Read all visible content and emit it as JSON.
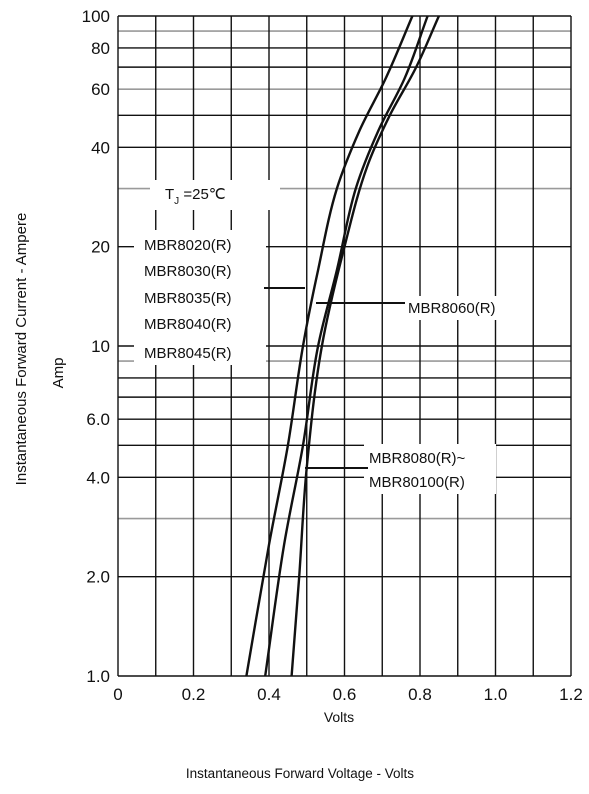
{
  "chart_data": {
    "type": "line",
    "title": "",
    "xlabel": "Volts",
    "ylabel": "Instantaneous Forward Current - Ampere",
    "ylabel_sub": "Amp",
    "caption": "Instantaneous Forward Voltage - Volts",
    "xlim": [
      0,
      1.2
    ],
    "ylim": [
      1,
      100
    ],
    "yscale": "log",
    "grid": true,
    "x_ticks": [
      0,
      0.2,
      0.4,
      0.6,
      0.8,
      1.0,
      1.2
    ],
    "x_tick_labels": [
      "0",
      "0.2",
      "0.4",
      "0.6",
      "0.8",
      "1.0",
      "1.2"
    ],
    "y_ticks": [
      1,
      2,
      4,
      6,
      10,
      20,
      40,
      60,
      80,
      100
    ],
    "y_tick_labels": [
      "1.0",
      "2.0",
      "4.0",
      "6.0",
      "10",
      "20",
      "40",
      "60",
      "80",
      "100"
    ],
    "condition": {
      "prefix": "T",
      "sub": "J",
      "text": " =25℃"
    },
    "annotations": {
      "group1": [
        "MBR8020(R)",
        "MBR8030(R)",
        "MBR8035(R)",
        "MBR8040(R)",
        "MBR8045(R)"
      ],
      "group2": "MBR8060(R)",
      "group3": [
        "MBR8080(R)~",
        "MBR80100(R)"
      ]
    },
    "series": [
      {
        "name": "MBR8020(R)~MBR8045(R)",
        "x": [
          0.34,
          0.4,
          0.45,
          0.49,
          0.53,
          0.58,
          0.64,
          0.71,
          0.78
        ],
        "y": [
          1,
          2.5,
          5,
          10,
          17,
          30,
          45,
          65,
          100
        ]
      },
      {
        "name": "MBR8060(R)",
        "x": [
          0.39,
          0.44,
          0.49,
          0.53,
          0.58,
          0.63,
          0.69,
          0.76,
          0.82
        ],
        "y": [
          1,
          2.5,
          5,
          10,
          17,
          30,
          45,
          65,
          100
        ]
      },
      {
        "name": "MBR8080(R)~MBR80100(R)",
        "x": [
          0.46,
          0.48,
          0.5,
          0.54,
          0.6,
          0.66,
          0.72,
          0.79,
          0.85
        ],
        "y": [
          1,
          2.0,
          4.3,
          10,
          20,
          35,
          50,
          70,
          100
        ]
      }
    ]
  }
}
